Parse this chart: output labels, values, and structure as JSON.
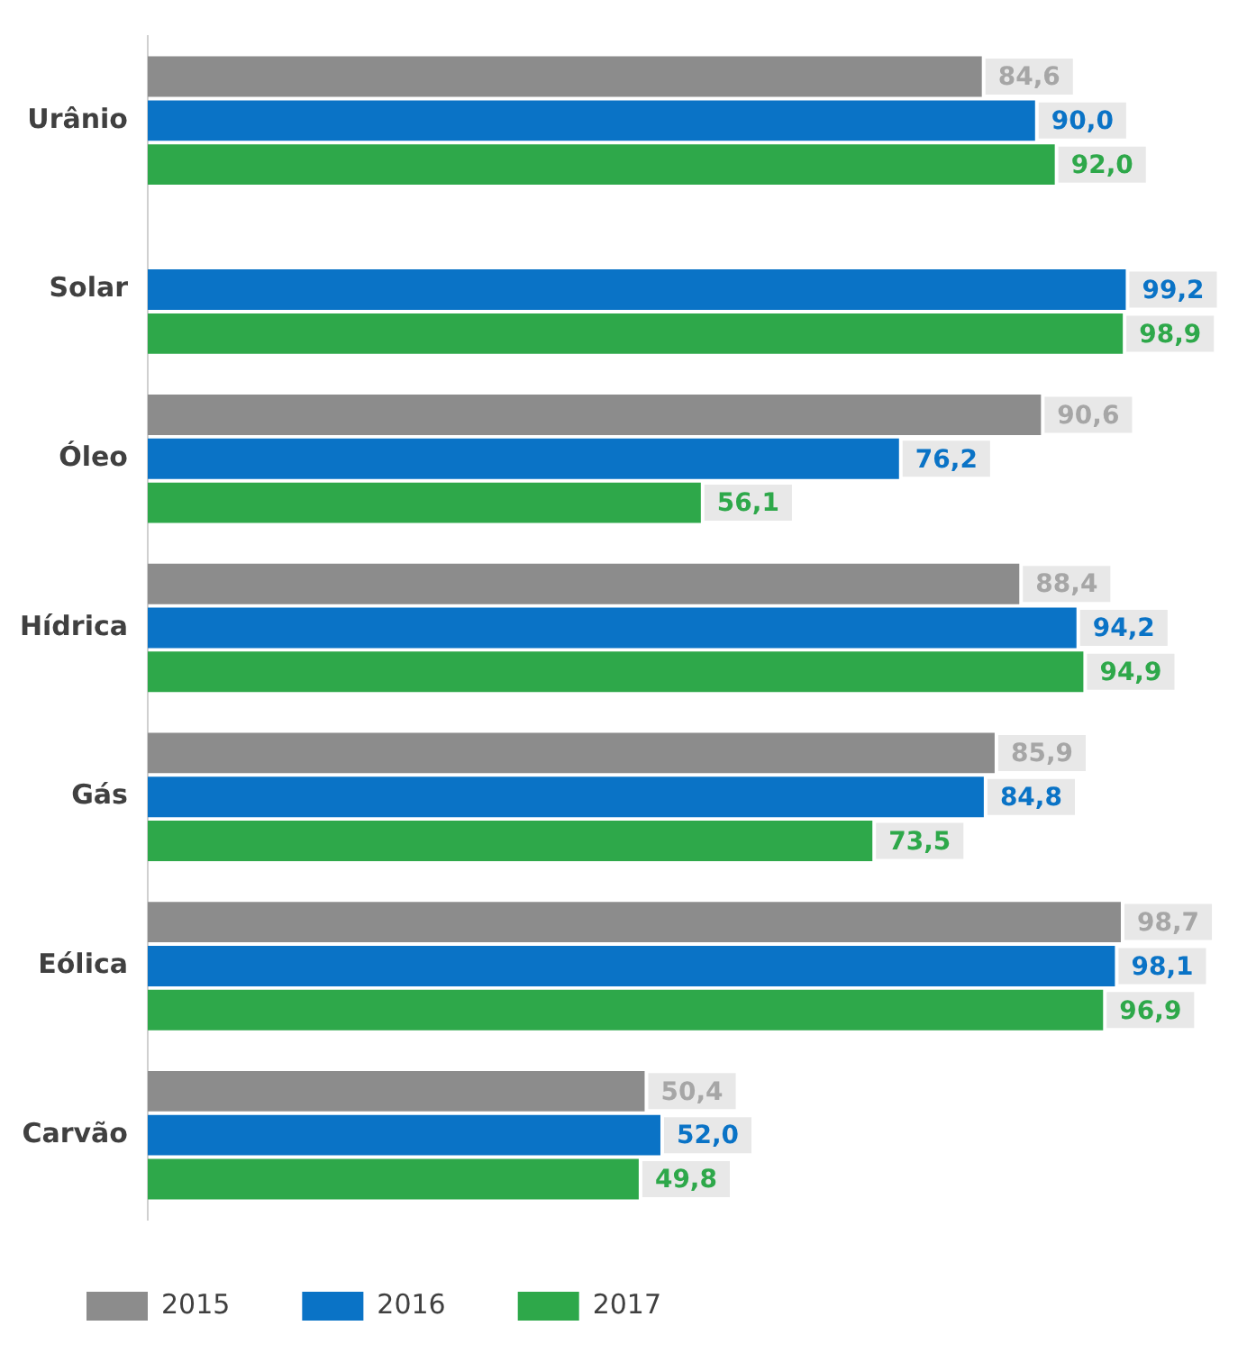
{
  "chart_data": {
    "type": "bar",
    "orientation": "horizontal",
    "categories": [
      "Urânio",
      "Solar",
      "Óleo",
      "Hídrica",
      "Gás",
      "Eólica",
      "Carvão"
    ],
    "series": [
      {
        "name": "2015",
        "color": "#8c8c8c",
        "values": [
          84.6,
          null,
          90.6,
          88.4,
          85.9,
          98.7,
          50.4
        ],
        "value_labels": [
          "84,6",
          null,
          "90,6",
          "88,4",
          "85,9",
          "98,7",
          "50,4"
        ]
      },
      {
        "name": "2016",
        "color": "#0a73c6",
        "values": [
          90.0,
          99.2,
          76.2,
          94.2,
          84.8,
          98.1,
          52.0
        ],
        "value_labels": [
          "90,0",
          "99,2",
          "76,2",
          "94,2",
          "84,8",
          "98,1",
          "52,0"
        ]
      },
      {
        "name": "2017",
        "color": "#2ea84a",
        "values": [
          92.0,
          98.9,
          56.1,
          94.9,
          73.5,
          96.9,
          49.8
        ],
        "value_labels": [
          "92,0",
          "98,9",
          "56,1",
          "94,9",
          "73,5",
          "96,9",
          "49,8"
        ]
      }
    ],
    "legend": "bottom left",
    "tick_labels": "y"
  }
}
